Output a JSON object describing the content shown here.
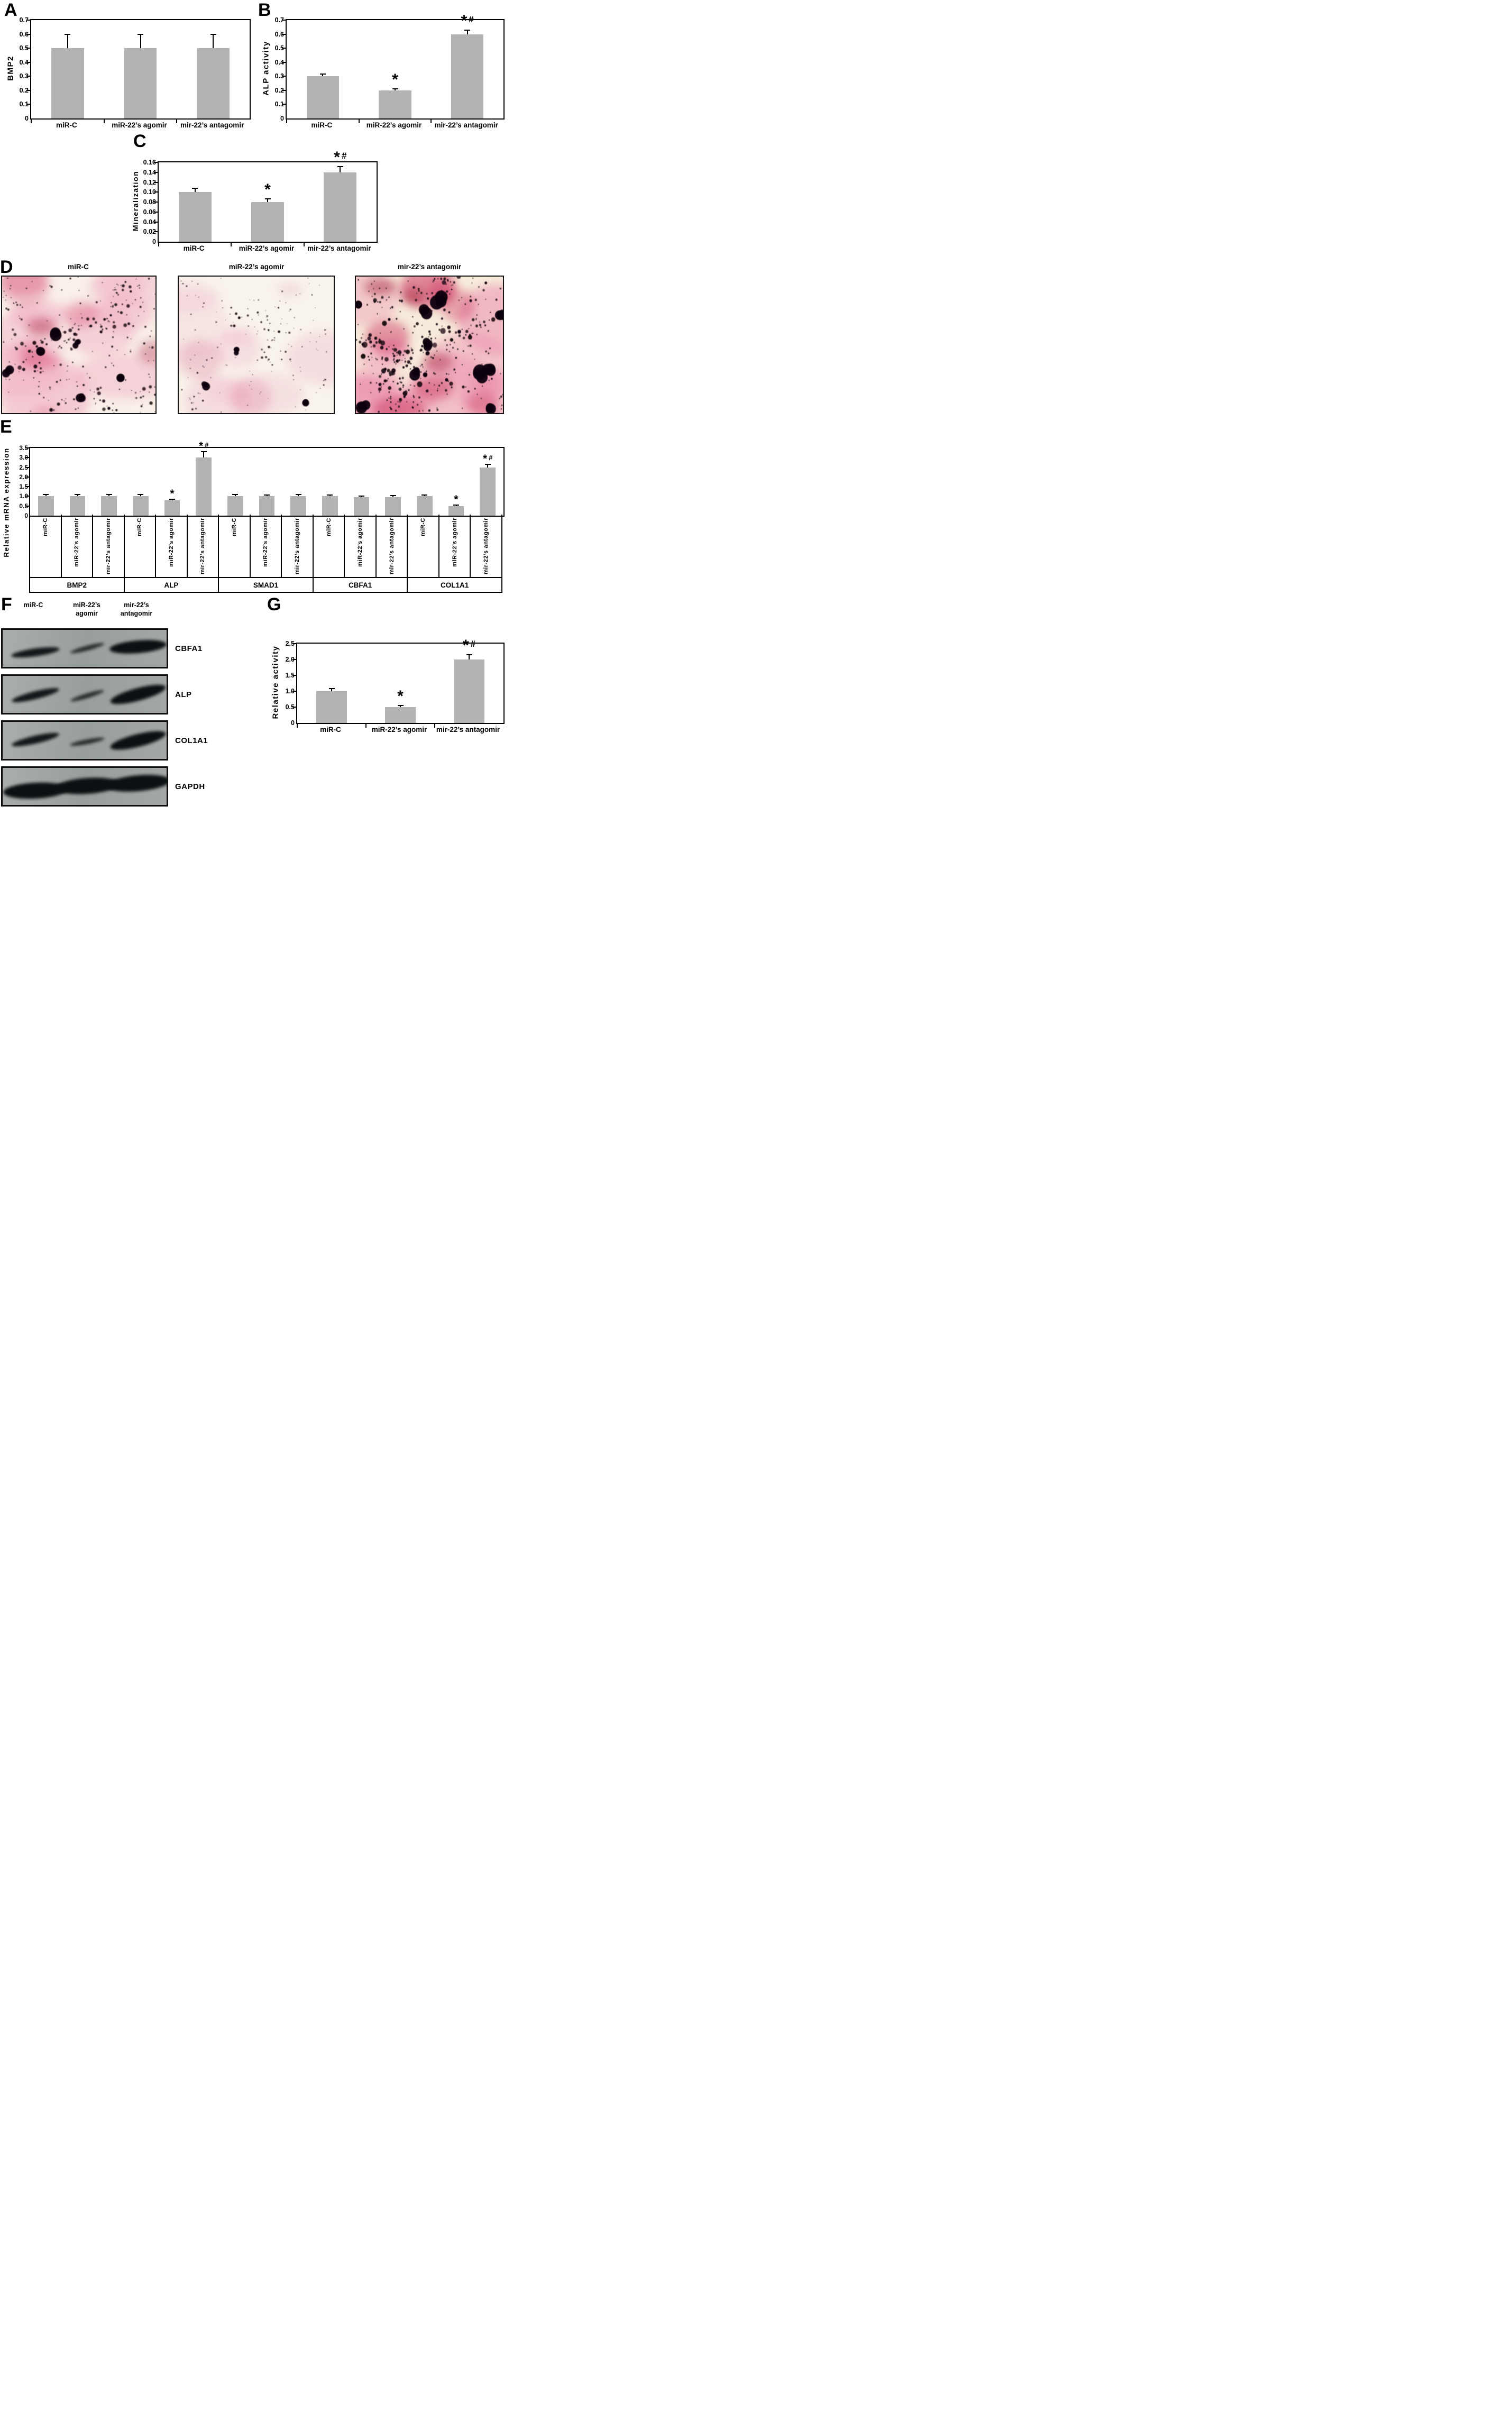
{
  "figure": {
    "background": "#ffffff",
    "bar_color": "#b3b3b3",
    "axis_color": "#000000",
    "significance_symbols": {
      "vs_control": "*",
      "vs_agomir": "#"
    }
  },
  "chart_data": [
    {
      "id": "A",
      "type": "bar",
      "panel_label": "A",
      "title": "",
      "xlabel": "",
      "ylabel": "BMP2",
      "ylim": [
        0,
        0.7
      ],
      "yticks": [
        "0",
        "0.1",
        "0.2",
        "0.3",
        "0.4",
        "0.5",
        "0.6",
        "0.7"
      ],
      "categories": [
        "miR-C",
        "miR-22’s agomir",
        "mir-22’s antagomir"
      ],
      "values": [
        0.5,
        0.5,
        0.5
      ],
      "errors": [
        0.1,
        0.1,
        0.1
      ],
      "annotations": [
        "",
        "",
        ""
      ],
      "grid": false,
      "legend": "none"
    },
    {
      "id": "B",
      "type": "bar",
      "panel_label": "B",
      "title": "",
      "xlabel": "",
      "ylabel": "ALP activity",
      "ylim": [
        0,
        0.7
      ],
      "yticks": [
        "0",
        "0.1",
        "0.2",
        "0.3",
        "0.4",
        "0.5",
        "0.6",
        "0.7"
      ],
      "categories": [
        "miR-C",
        "miR-22’s agomir",
        "mir-22’s antagomir"
      ],
      "values": [
        0.3,
        0.2,
        0.6
      ],
      "errors": [
        0.015,
        0.012,
        0.03
      ],
      "annotations": [
        "",
        "*",
        "*#"
      ],
      "grid": false,
      "legend": "none"
    },
    {
      "id": "C",
      "type": "bar",
      "panel_label": "C",
      "title": "",
      "xlabel": "",
      "ylabel": "Mineralization",
      "ylim": [
        0,
        0.16
      ],
      "yticks": [
        "0",
        "0.02",
        "0.04",
        "0.06",
        "0.08",
        "0.10",
        "0.12",
        "0.14",
        "0.16"
      ],
      "categories": [
        "miR-C",
        "miR-22’s agomir",
        "mir-22’s antagomir"
      ],
      "values": [
        0.1,
        0.08,
        0.14
      ],
      "errors": [
        0.008,
        0.006,
        0.012
      ],
      "annotations": [
        "",
        "*",
        "*#"
      ],
      "grid": false,
      "legend": "none"
    },
    {
      "id": "E",
      "type": "bar",
      "panel_label": "E",
      "title": "",
      "xlabel": "",
      "ylabel": "Relative mRNA expression",
      "ylim": [
        0,
        3.5
      ],
      "yticks": [
        "0",
        "0.5",
        "1.0",
        "1.5",
        "2.0",
        "2.5",
        "3.0",
        "3.5"
      ],
      "lane_labels": [
        "miR-C",
        "miR-22’s agomir",
        "mir-22’s antagomir"
      ],
      "groups": [
        {
          "name": "BMP2",
          "values": [
            1.0,
            1.0,
            1.0
          ],
          "errors": [
            0.1,
            0.1,
            0.1
          ],
          "annotations": [
            "",
            "",
            ""
          ]
        },
        {
          "name": "ALP",
          "values": [
            1.0,
            0.8,
            3.0
          ],
          "errors": [
            0.1,
            0.05,
            0.3
          ],
          "annotations": [
            "",
            "*",
            "*#"
          ]
        },
        {
          "name": "SMAD1",
          "values": [
            1.0,
            1.0,
            1.0
          ],
          "errors": [
            0.1,
            0.08,
            0.1
          ],
          "annotations": [
            "",
            "",
            ""
          ]
        },
        {
          "name": "CBFA1",
          "values": [
            1.0,
            0.95,
            0.95
          ],
          "errors": [
            0.08,
            0.06,
            0.08
          ],
          "annotations": [
            "",
            "",
            ""
          ]
        },
        {
          "name": "COL1A1",
          "values": [
            1.0,
            0.5,
            2.5
          ],
          "errors": [
            0.08,
            0.04,
            0.15
          ],
          "annotations": [
            "",
            "*",
            "*#"
          ]
        }
      ],
      "grid": false,
      "legend": "none"
    },
    {
      "id": "G",
      "type": "bar",
      "panel_label": "G",
      "title": "",
      "xlabel": "",
      "ylabel": "Relative activity",
      "ylim": [
        0,
        2.5
      ],
      "yticks": [
        "0",
        "0.5",
        "1.0",
        "1.5",
        "2.0",
        "2.5"
      ],
      "categories": [
        "miR-C",
        "miR-22’s agomir",
        "mir-22’s antagomir"
      ],
      "values": [
        1.0,
        0.5,
        2.0
      ],
      "errors": [
        0.08,
        0.05,
        0.15
      ],
      "annotations": [
        "",
        "*",
        "*#"
      ],
      "grid": false,
      "legend": "none"
    }
  ],
  "panel_d": {
    "label": "D",
    "description": "Alizarin red staining micrographs",
    "images": [
      {
        "title": "miR-C",
        "stain_density": "high",
        "params": {
          "seed": 11,
          "bg": "#f9f0e9",
          "pinks": [
            {
              "c": "#f0a8bf",
              "n": 10,
              "o": 0.5,
              "rx": 70
            },
            {
              "c": "#d9547a",
              "n": 6,
              "o": 0.42,
              "rx": 40
            },
            {
              "c": "#a61638",
              "n": 2,
              "o": 0.5,
              "rx": 22
            }
          ],
          "clusters": 12,
          "clusterSize": 12,
          "spread": 30,
          "rMin": 0.8,
          "rMax": 5.0,
          "singles": 140,
          "sRMax": 2.6,
          "bigBlobs": 6,
          "bigRMin": 7,
          "bigRMax": 12
        }
      },
      {
        "title": "miR-22’s agomir",
        "stain_density": "low",
        "params": {
          "seed": 29,
          "bg": "#f8f3eb",
          "pinks": [
            {
              "c": "#f2bccd",
              "n": 8,
              "o": 0.4,
              "rx": 55
            },
            {
              "c": "#de7f9d",
              "n": 3,
              "o": 0.3,
              "rx": 30
            }
          ],
          "clusters": 7,
          "clusterSize": 8,
          "spread": 26,
          "rMin": 0.6,
          "rMax": 3.2,
          "singles": 110,
          "sRMax": 2.0,
          "bigBlobs": 3,
          "bigRMin": 5,
          "bigRMax": 8
        }
      },
      {
        "title": "mir-22’s antagomir",
        "stain_density": "very-high",
        "params": {
          "seed": 47,
          "bg": "#f7ecdc",
          "pinks": [
            {
              "c": "#ec8fae",
              "n": 12,
              "o": 0.55,
              "rx": 70
            },
            {
              "c": "#cf3f68",
              "n": 7,
              "o": 0.5,
              "rx": 42
            },
            {
              "c": "#9c1232",
              "n": 3,
              "o": 0.5,
              "rx": 24
            }
          ],
          "clusters": 15,
          "clusterSize": 14,
          "spread": 32,
          "rMin": 1.0,
          "rMax": 6.0,
          "singles": 170,
          "sRMax": 3.0,
          "bigBlobs": 10,
          "bigRMin": 8,
          "bigRMax": 15
        }
      }
    ]
  },
  "panel_f": {
    "label": "F",
    "description": "Western blot",
    "lane_headers": [
      [
        "miR-C"
      ],
      [
        "miR-22’s",
        "agomir"
      ],
      [
        "mir-22’s",
        "antagomir"
      ]
    ],
    "blots": [
      {
        "protein": "CBFA1",
        "bands": [
          {
            "lane": 0,
            "intensity": "medium",
            "tilt": -8,
            "dy": 7
          },
          {
            "lane": 1,
            "intensity": "thin",
            "tilt": -15,
            "dy": -1
          },
          {
            "lane": 2,
            "intensity": "strong",
            "tilt": -5,
            "dy": -3
          }
        ]
      },
      {
        "protein": "ALP",
        "bands": [
          {
            "lane": 0,
            "intensity": "medium",
            "tilt": -14,
            "dy": 1
          },
          {
            "lane": 1,
            "intensity": "thin",
            "tilt": -17,
            "dy": 2
          },
          {
            "lane": 2,
            "intensity": "strong",
            "tilt": -15,
            "dy": 0
          }
        ]
      },
      {
        "protein": "COL1A1",
        "bands": [
          {
            "lane": 0,
            "intensity": "medium",
            "tilt": -13,
            "dy": -2
          },
          {
            "lane": 1,
            "intensity": "thin",
            "tilt": -11,
            "dy": 2
          },
          {
            "lane": 2,
            "intensity": "strong",
            "tilt": -14,
            "dy": 0
          }
        ]
      },
      {
        "protein": "GAPDH",
        "bands": [
          {
            "lane": 0,
            "intensity": "xstrong",
            "tilt": -3,
            "dy": 8
          },
          {
            "lane": 1,
            "intensity": "xstrong",
            "tilt": -4,
            "dy": -1
          },
          {
            "lane": 2,
            "intensity": "xstrong",
            "tilt": -5,
            "dy": -6
          }
        ]
      }
    ]
  }
}
